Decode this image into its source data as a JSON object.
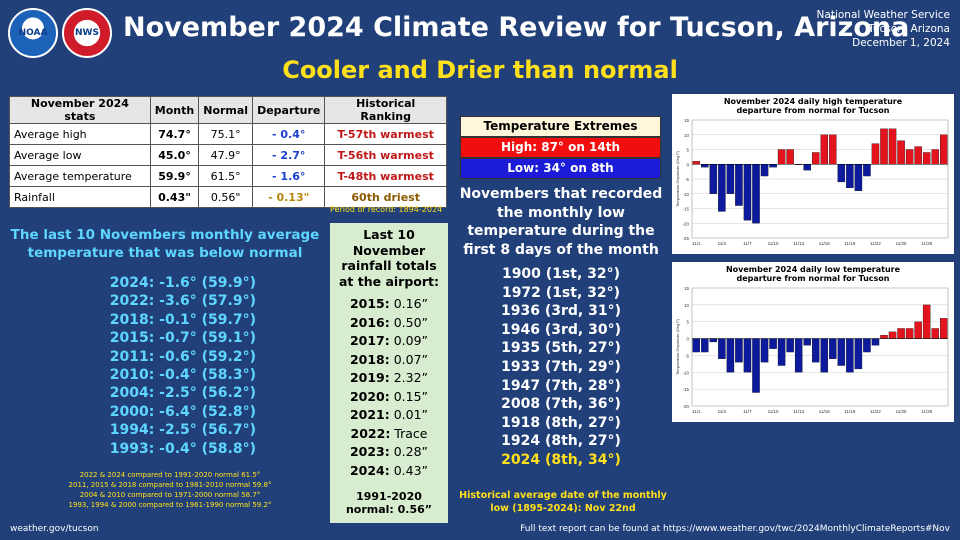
{
  "header": {
    "noaa_logo_text": "NOAA",
    "nws_logo_text": "NWS",
    "title": "November 2024 Climate Review for Tucson, Arizona",
    "subtitle": "Cooler and Drier than normal",
    "office_line1": "National Weather Service",
    "office_line2": "Tucson, Arizona",
    "office_line3": "December 1, 2024"
  },
  "stats_table": {
    "headers": [
      "November 2024 stats",
      "Month",
      "Normal",
      "Departure",
      "Historical Ranking"
    ],
    "rows": [
      {
        "label": "Average high",
        "month": "74.7°",
        "normal": "75.1°",
        "departure": "- 0.4°",
        "ranking": "T-57th warmest"
      },
      {
        "label": "Average low",
        "month": "45.0°",
        "normal": "47.9°",
        "departure": "- 2.7°",
        "ranking": "T-56th warmest"
      },
      {
        "label": "Average temperature",
        "month": "59.9°",
        "normal": "61.5°",
        "departure": "- 1.6°",
        "ranking": "T-48th warmest"
      },
      {
        "label": "Rainfall",
        "month": "0.43\"",
        "normal": "0.56\"",
        "departure": "- 0.13\"",
        "ranking": "60th driest"
      }
    ],
    "period": "Period of record: 1894-2024"
  },
  "last10_temp": {
    "title_line1": "The last 10 Novembers monthly average",
    "title_line2": "temperature that was below normal",
    "items": [
      "2024: -1.6° (59.9°)",
      "2022: -3.6° (57.9°)",
      "2018: -0.1° (59.7°)",
      "2015: -0.7° (59.1°)",
      "2011: -0.6° (59.2°)",
      "2010: -0.4° (58.3°)",
      "2004: -2.5° (56.2°)",
      "2000: -6.4° (52.8°)",
      "1994: -2.5° (56.7°)",
      "1993: -0.4° (58.8°)"
    ],
    "footnotes": [
      "2022 & 2024 compared to  1991-2020 normal 61.5°",
      "2011, 2015 & 2018 compared to 1981-2010 normal 59.8°",
      "2004 & 2010 compared to 1971-2000 normal 58.7°",
      "1993, 1994 & 2000  compared to 1961-1990 normal 59.2°"
    ]
  },
  "rainfall": {
    "title_line1": "Last 10",
    "title_line2": "November",
    "title_line3": "rainfall totals",
    "title_line4": "at the airport:",
    "items": [
      {
        "year": "2015:",
        "value": " 0.16”"
      },
      {
        "year": "2016:",
        "value": " 0.50”"
      },
      {
        "year": "2017:",
        "value": " 0.09”"
      },
      {
        "year": "2018:",
        "value": " 0.07”"
      },
      {
        "year": "2019:",
        "value": " 2.32”"
      },
      {
        "year": "2020:",
        "value": " 0.15”"
      },
      {
        "year": "2021:",
        "value": " 0.01”"
      },
      {
        "year": "2022:",
        "value": " Trace"
      },
      {
        "year": "2023:",
        "value": " 0.28”"
      },
      {
        "year": "2024:",
        "value": " 0.43”"
      }
    ],
    "normal_line1": "1991-2020",
    "normal_line2": "normal: 0.56”"
  },
  "extremes": {
    "header": "Temperature Extremes",
    "high": "High: 87° on 14th",
    "low": "Low: 34° on 8th"
  },
  "early_lows": {
    "title_line1": "Novembers that recorded",
    "title_line2": "the monthly low",
    "title_line3": "temperature during the",
    "title_line4": "first 8 days of the month",
    "items": [
      "1900 (1st, 32°)",
      "1972 (1st, 32°)",
      "1936 (3rd, 31°)",
      "1946 (3rd, 30°)",
      "1935 (5th, 27°)",
      "1933 (7th, 29°)",
      "1947 (7th, 28°)",
      "2008 (7th, 36°)",
      "1918 (8th, 27°)",
      "1924 (8th, 27°)"
    ],
    "highlight": "2024 (8th, 34°)",
    "hist_line1": "Historical average date of the monthly",
    "hist_line2": "low (1895-2024): Nov 22nd"
  },
  "footer": {
    "left": "weather.gov/tucson",
    "right": "Full text report can be found at https://www.weather.gov/twc/2024MonthlyClimateReports#Nov"
  },
  "colors": {
    "background": "#21407a",
    "positive_bar": "#e3141e",
    "negative_bar": "#0d1a9c",
    "accent_yellow": "#ffe01a",
    "accent_cyan": "#5fd6ff"
  },
  "chart_data": [
    {
      "type": "bar",
      "title_line1": "November 2024 daily high temperature",
      "title_line2": "departure from normal for Tucson",
      "ylabel": "Temperature Departure (Deg F)",
      "ylim": [
        -25,
        15
      ],
      "yticks": [
        -25,
        -20,
        -15,
        -10,
        -5,
        0,
        5,
        10,
        15
      ],
      "xticks": [
        "11/1",
        "11/4",
        "11/7",
        "11/10",
        "11/13",
        "11/16",
        "11/19",
        "11/22",
        "11/25",
        "11/28"
      ],
      "x": [
        1,
        2,
        3,
        4,
        5,
        6,
        7,
        8,
        9,
        10,
        11,
        12,
        13,
        14,
        15,
        16,
        17,
        18,
        19,
        20,
        21,
        22,
        23,
        24,
        25,
        26,
        27,
        28,
        29,
        30
      ],
      "values": [
        1,
        -1,
        -10,
        -16,
        -10,
        -14,
        -19,
        -20,
        -4,
        -1,
        5,
        5,
        0,
        -2,
        4,
        10,
        10,
        -6,
        -8,
        -9,
        -4,
        7,
        12,
        12,
        8,
        5,
        6,
        4,
        5,
        10
      ]
    },
    {
      "type": "bar",
      "title_line1": "November 2024 daily low temperature",
      "title_line2": "departure from normal for Tucson",
      "ylabel": "Temperature Departure (Deg F)",
      "ylim": [
        -20,
        15
      ],
      "yticks": [
        -20,
        -15,
        -10,
        -5,
        0,
        5,
        10,
        15
      ],
      "xticks": [
        "11/1",
        "11/4",
        "11/7",
        "11/10",
        "11/13",
        "11/16",
        "11/19",
        "11/22",
        "11/25",
        "11/28"
      ],
      "x": [
        1,
        2,
        3,
        4,
        5,
        6,
        7,
        8,
        9,
        10,
        11,
        12,
        13,
        14,
        15,
        16,
        17,
        18,
        19,
        20,
        21,
        22,
        23,
        24,
        25,
        26,
        27,
        28,
        29,
        30
      ],
      "values": [
        -4,
        -4,
        -1,
        -6,
        -10,
        -7,
        -10,
        -16,
        -7,
        -3,
        -8,
        -4,
        -10,
        -2,
        -7,
        -10,
        -6,
        -8,
        -10,
        -9,
        -4,
        -2,
        1,
        2,
        3,
        3,
        5,
        10,
        3,
        6
      ]
    }
  ]
}
